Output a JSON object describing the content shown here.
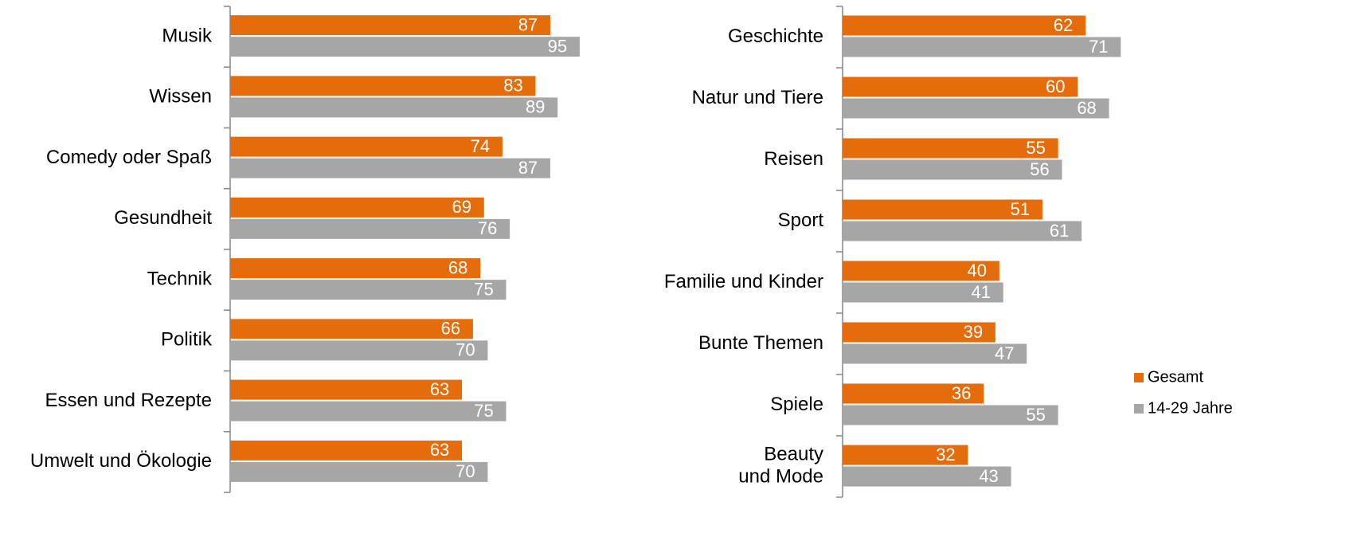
{
  "chart_data": [
    {
      "type": "barh",
      "categories": [
        "Musik",
        "Wissen",
        "Comedy oder Spaß",
        "Gesundheit",
        "Technik",
        "Politik",
        "Essen und Rezepte",
        "Umwelt und Ökologie"
      ],
      "series": [
        {
          "color": "#e46c0a",
          "values": [
            87,
            83,
            74,
            69,
            68,
            66,
            63,
            63
          ]
        },
        {
          "color": "#a6a6a6",
          "values": [
            95,
            89,
            87,
            76,
            75,
            70,
            75,
            70
          ]
        }
      ],
      "xlim": [
        0,
        100
      ]
    },
    {
      "type": "barh",
      "categories": [
        "Geschichte",
        "Natur und Tiere",
        "Reisen",
        "Sport",
        "Familie und Kinder",
        "Bunte Themen",
        "Spiele",
        "Beauty\nund Mode"
      ],
      "series": [
        {
          "name": "Gesamt",
          "color": "#e46c0a",
          "values": [
            62,
            60,
            55,
            51,
            40,
            39,
            36,
            32
          ]
        },
        {
          "name": "14-29 Jahre",
          "color": "#a6a6a6",
          "values": [
            71,
            68,
            56,
            61,
            41,
            47,
            55,
            43
          ]
        }
      ],
      "xlim": [
        0,
        100
      ],
      "legend": "right"
    }
  ]
}
